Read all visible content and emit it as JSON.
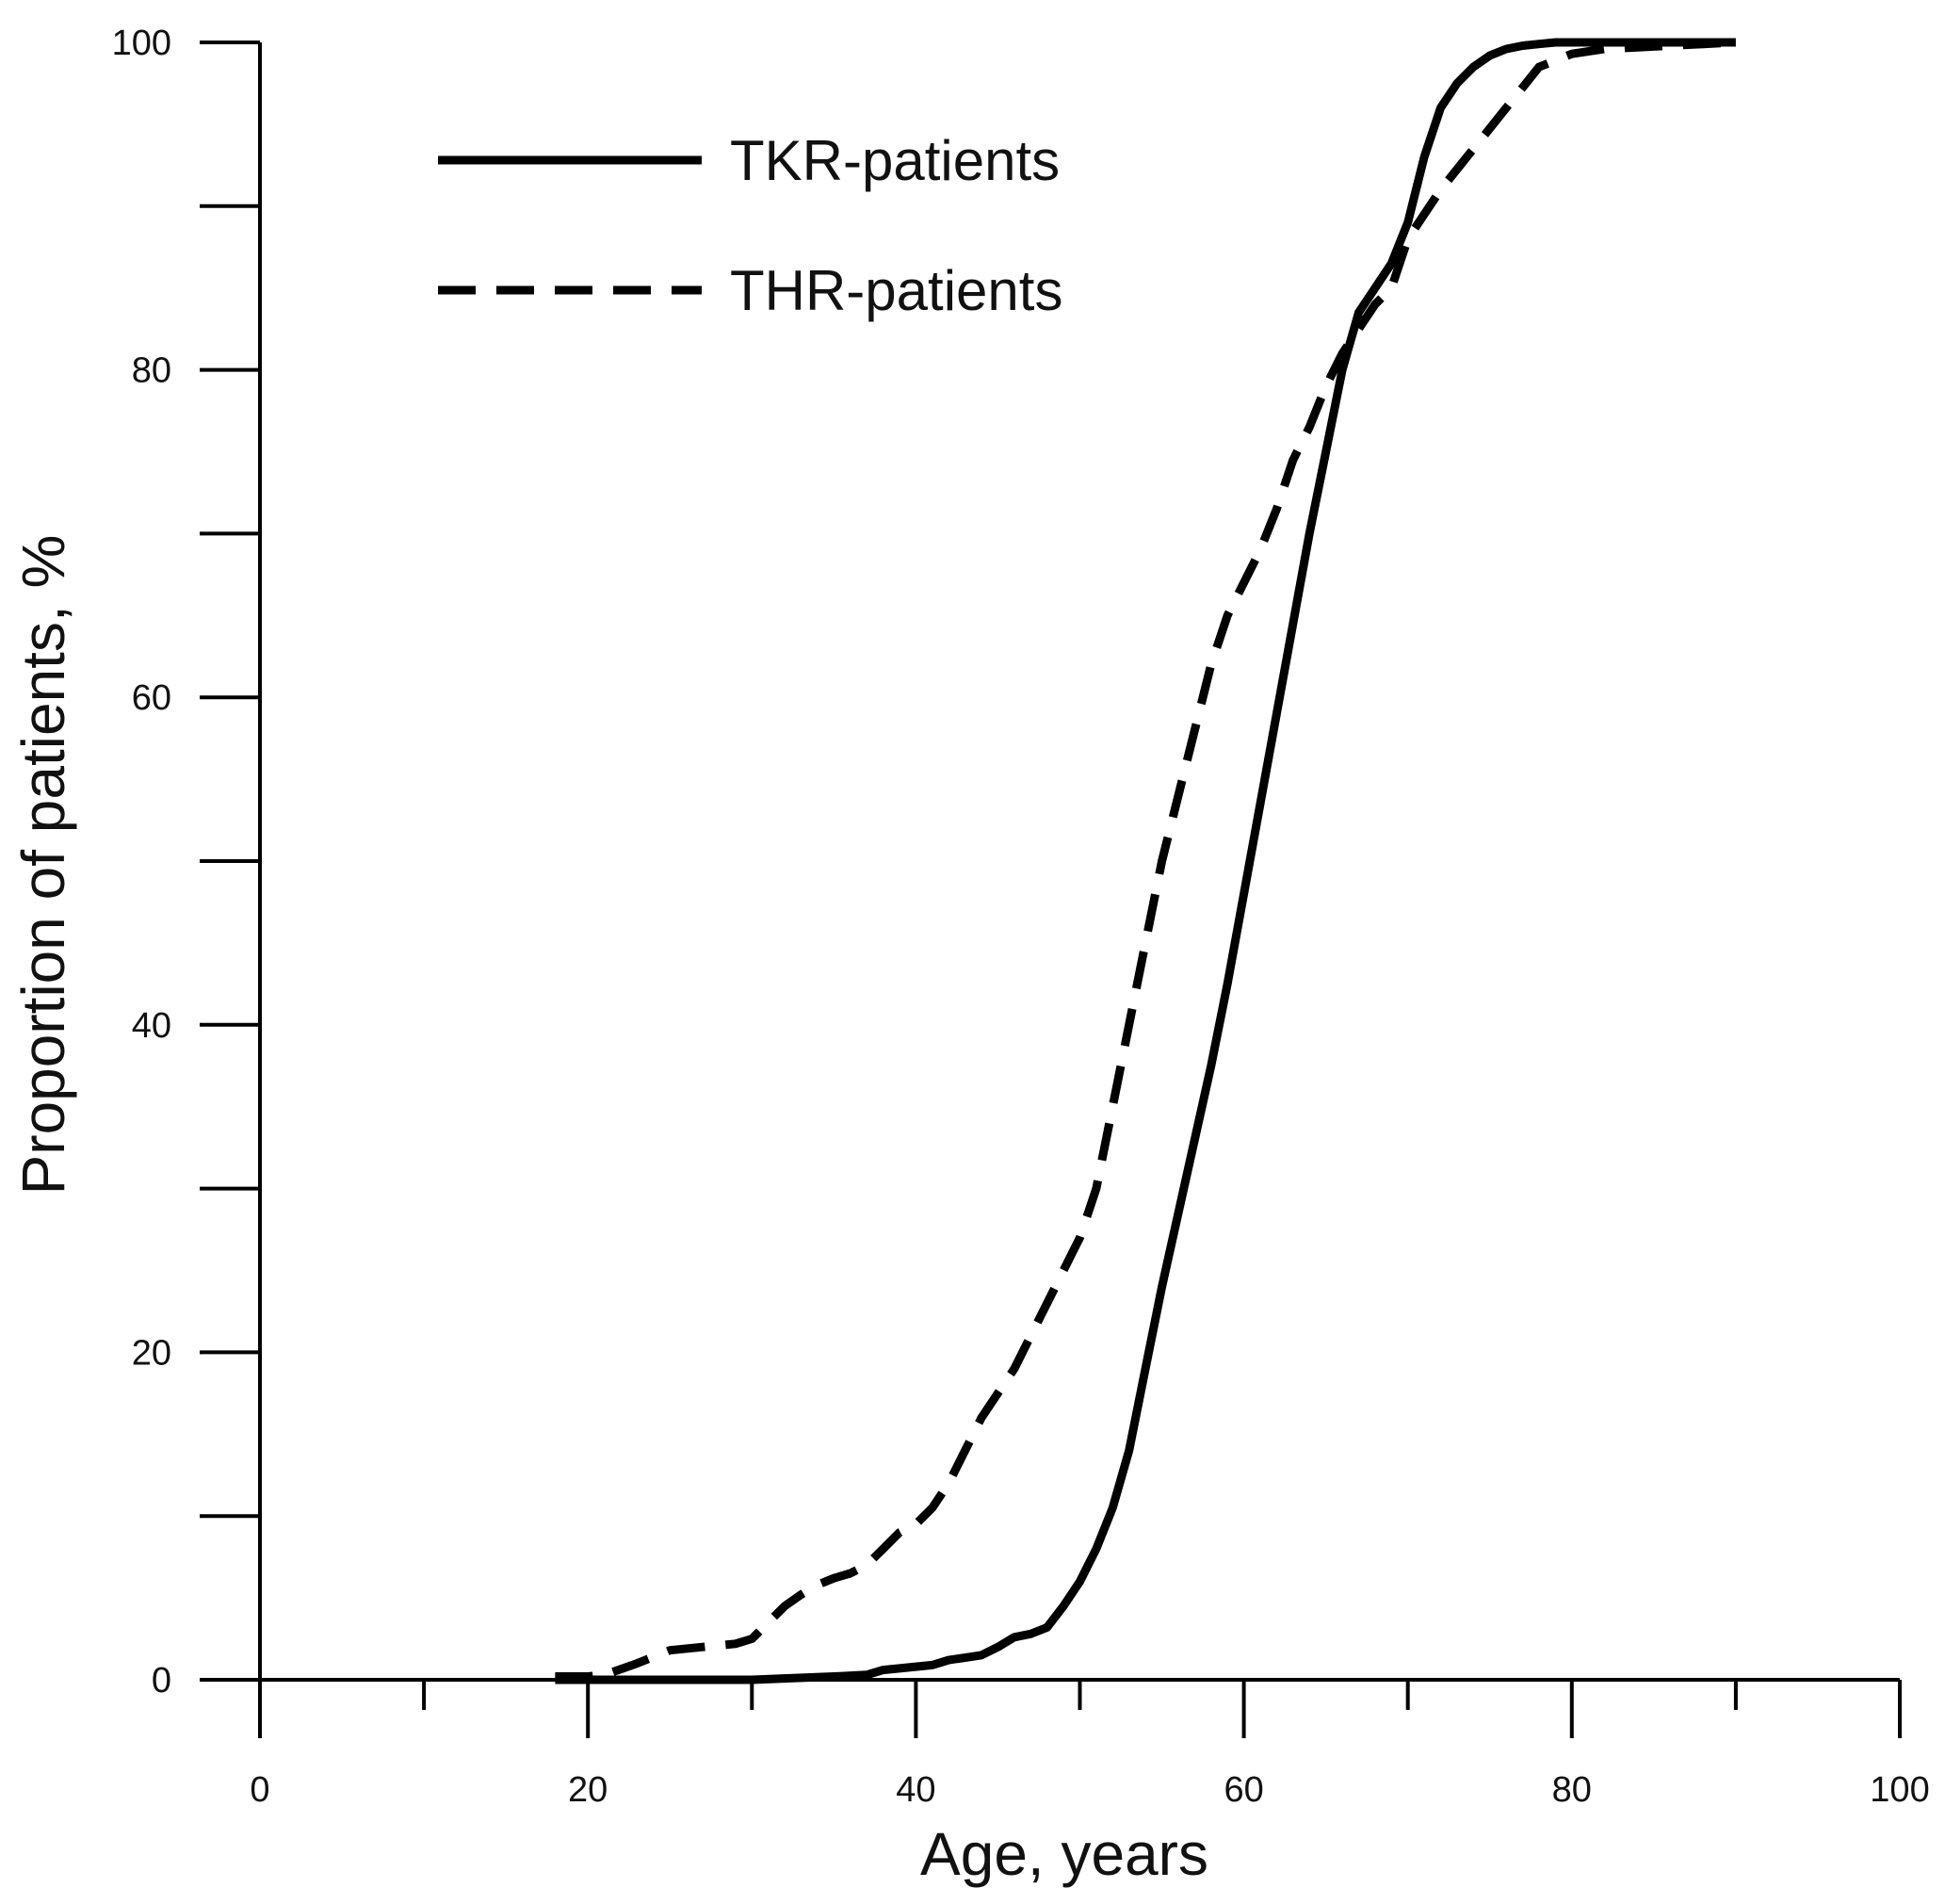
{
  "chart_data": {
    "type": "line",
    "title": "",
    "xlabel": "Age, years",
    "ylabel": "Proportion of patients, %",
    "xlim": [
      0,
      100
    ],
    "ylim": [
      0,
      100
    ],
    "x_ticks": [
      0,
      20,
      40,
      60,
      80,
      100
    ],
    "y_ticks": [
      0,
      20,
      40,
      60,
      80,
      100
    ],
    "x_minor_step": 10,
    "y_minor_step": 10,
    "grid": false,
    "legend_position": "top-left",
    "series": [
      {
        "name": "TKR-patients",
        "style": "solid",
        "color": "#000000",
        "x": [
          18,
          25,
          30,
          35,
          37,
          38,
          40,
          41,
          42,
          44,
          45,
          46,
          47,
          48,
          49,
          50,
          51,
          52,
          53,
          54,
          55,
          56,
          57,
          58,
          59,
          60,
          61,
          62,
          63,
          64,
          65,
          66,
          67,
          68,
          69,
          70,
          71,
          72,
          73,
          74,
          75,
          76,
          77,
          78,
          79,
          80,
          81,
          82,
          84,
          86,
          88,
          90
        ],
        "values": [
          0,
          0,
          0,
          0.2,
          0.3,
          0.6,
          0.8,
          0.9,
          1.2,
          1.5,
          2.0,
          2.6,
          2.8,
          3.2,
          4.5,
          6.0,
          8.0,
          10.5,
          14.0,
          19.0,
          24.0,
          28.5,
          33.0,
          37.5,
          42.5,
          48.0,
          53.5,
          59.0,
          64.5,
          70.0,
          75.0,
          80.0,
          83.5,
          85.0,
          86.5,
          89.0,
          93.0,
          96.0,
          97.5,
          98.5,
          99.2,
          99.6,
          99.8,
          99.9,
          100,
          100,
          100,
          100,
          100,
          100,
          100,
          100
        ]
      },
      {
        "name": "THR-patients",
        "style": "dashed",
        "color": "#000000",
        "x": [
          18,
          20,
          21,
          23,
          25,
          27,
          29,
          30,
          31,
          32,
          33,
          34,
          35,
          36,
          37,
          38,
          39,
          40,
          41,
          42,
          43,
          44,
          45,
          46,
          47,
          48,
          49,
          50,
          51,
          52,
          53,
          54,
          55,
          56,
          57,
          58,
          59,
          60,
          61,
          62,
          63,
          64,
          65,
          66,
          67,
          68,
          69,
          70,
          72,
          74,
          76,
          78,
          80,
          82,
          84,
          86,
          88,
          90
        ],
        "values": [
          0.2,
          0.2,
          0.3,
          1.0,
          1.8,
          2.0,
          2.2,
          2.5,
          3.5,
          4.5,
          5.2,
          5.8,
          6.2,
          6.5,
          7.0,
          8.0,
          9.0,
          9.5,
          10.5,
          12.0,
          14.0,
          16.0,
          17.5,
          19.0,
          21.0,
          23.0,
          25.0,
          27.0,
          30.0,
          35.0,
          40.0,
          45.0,
          50.0,
          54.0,
          58.0,
          62.0,
          65.0,
          67.0,
          69.0,
          71.5,
          74.5,
          76.5,
          79.0,
          81.0,
          82.5,
          84.0,
          85.0,
          88.0,
          91.0,
          93.5,
          96.0,
          98.5,
          99.3,
          99.6,
          99.7,
          99.8,
          99.9,
          100
        ]
      }
    ]
  }
}
